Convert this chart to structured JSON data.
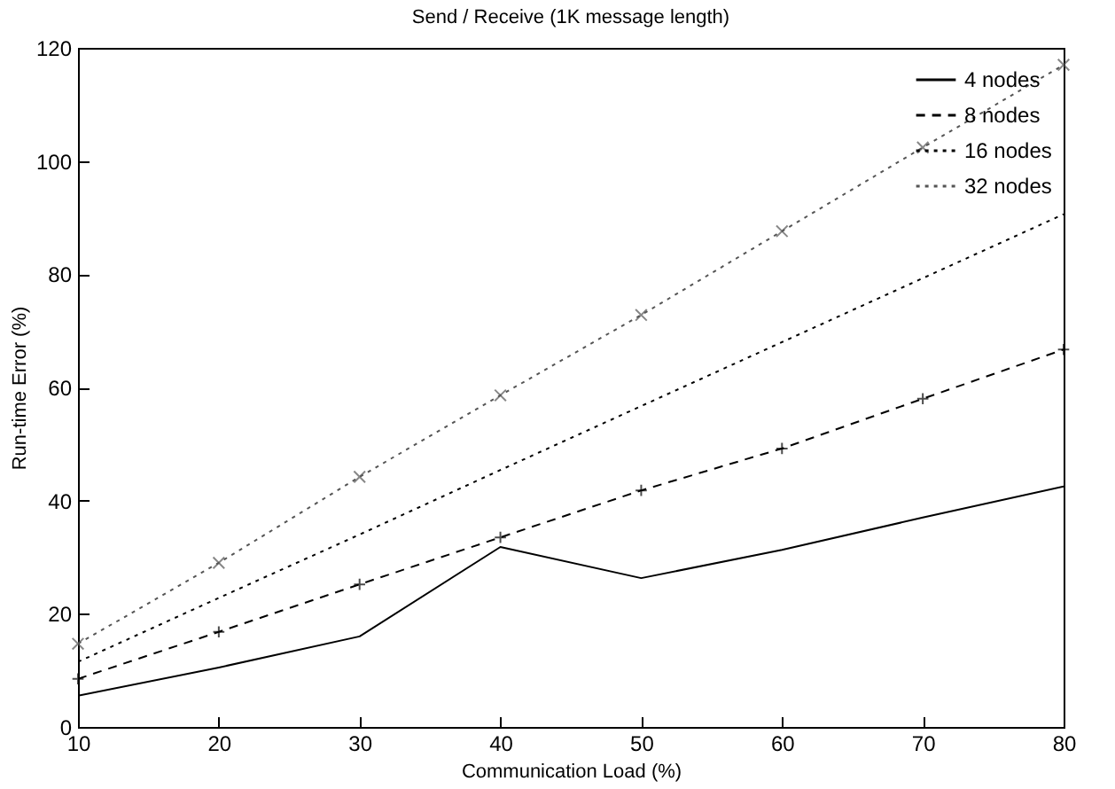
{
  "chart_data": {
    "type": "line",
    "title": "Send / Receive (1K message length)",
    "xlabel": "Communication Load (%)",
    "ylabel": "Run-time Error (%)",
    "x": [
      10,
      20,
      30,
      40,
      50,
      60,
      70,
      80
    ],
    "series": [
      {
        "name": "4 nodes",
        "color": "#000000",
        "line_style": "solid",
        "marker": "none",
        "values": [
          5.5,
          10.5,
          16,
          31.8,
          26.3,
          31.3,
          37,
          42.5
        ]
      },
      {
        "name": "8 nodes",
        "color": "#000000",
        "line_style": "dashed",
        "marker": "cross",
        "values": [
          8.5,
          16.8,
          25.2,
          33.5,
          41.8,
          49.2,
          58,
          66.7
        ]
      },
      {
        "name": "16 nodes",
        "color": "#000000",
        "line_style": "dotted",
        "marker": "none",
        "values": [
          11.5,
          22.8,
          34,
          45.4,
          56.7,
          68,
          79.3,
          90.6
        ]
      },
      {
        "name": "32 nodes",
        "color": "#555555",
        "line_style": "dotted",
        "marker": "x",
        "values": [
          14.7,
          29,
          44.2,
          58.6,
          72.8,
          87.6,
          102.4,
          117
        ]
      }
    ],
    "xlim": [
      10,
      80
    ],
    "xticks": [
      10,
      20,
      30,
      40,
      50,
      60,
      70,
      80
    ],
    "ylim": [
      0,
      120
    ],
    "yticks": [
      0,
      20,
      40,
      60,
      80,
      100,
      120
    ],
    "grid": false,
    "legend": "top right"
  }
}
